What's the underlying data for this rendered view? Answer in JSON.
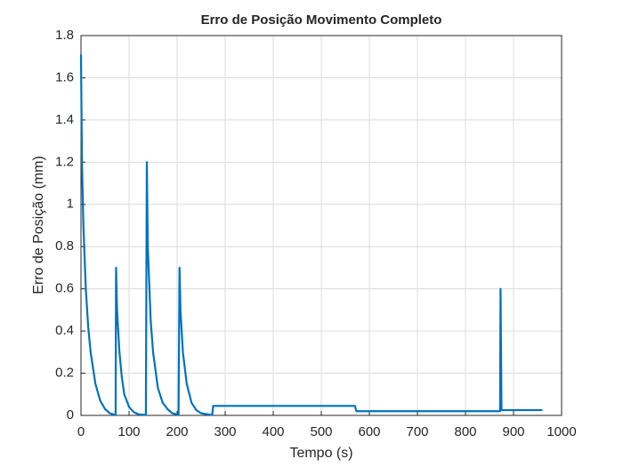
{
  "chart_data": {
    "type": "line",
    "title": "Erro de Posição Movimento Completo",
    "x_label": "Tempo (s)",
    "y_label": "Erro de Posição (mm)",
    "x": [
      0,
      2,
      5,
      10,
      15,
      20,
      30,
      40,
      50,
      60,
      70,
      72,
      73,
      75,
      80,
      85,
      90,
      100,
      110,
      120,
      135,
      137,
      139,
      145,
      150,
      160,
      170,
      180,
      190,
      203,
      205,
      207,
      212,
      220,
      230,
      240,
      250,
      270,
      273,
      275,
      570,
      573,
      872,
      873,
      875,
      960
    ],
    "values": [
      1.71,
      1.2,
      0.9,
      0.6,
      0.42,
      0.3,
      0.15,
      0.07,
      0.03,
      0.01,
      0.003,
      0.002,
      0.7,
      0.5,
      0.3,
      0.18,
      0.1,
      0.04,
      0.015,
      0.005,
      0.002,
      1.2,
      0.8,
      0.45,
      0.3,
      0.13,
      0.06,
      0.03,
      0.01,
      0.003,
      0.7,
      0.5,
      0.3,
      0.15,
      0.06,
      0.025,
      0.01,
      0.003,
      0.003,
      0.045,
      0.045,
      0.02,
      0.02,
      0.6,
      0.025,
      0.025
    ],
    "color": "#0072bd",
    "xlim": [
      0,
      1000
    ],
    "xticks": [
      0,
      100,
      200,
      300,
      400,
      500,
      600,
      700,
      800,
      900,
      1000
    ],
    "ylim": [
      0,
      1.8
    ],
    "yticks": [
      0,
      0.2,
      0.4,
      0.6,
      0.8,
      1,
      1.2,
      1.4,
      1.6,
      1.8
    ],
    "grid": true
  }
}
